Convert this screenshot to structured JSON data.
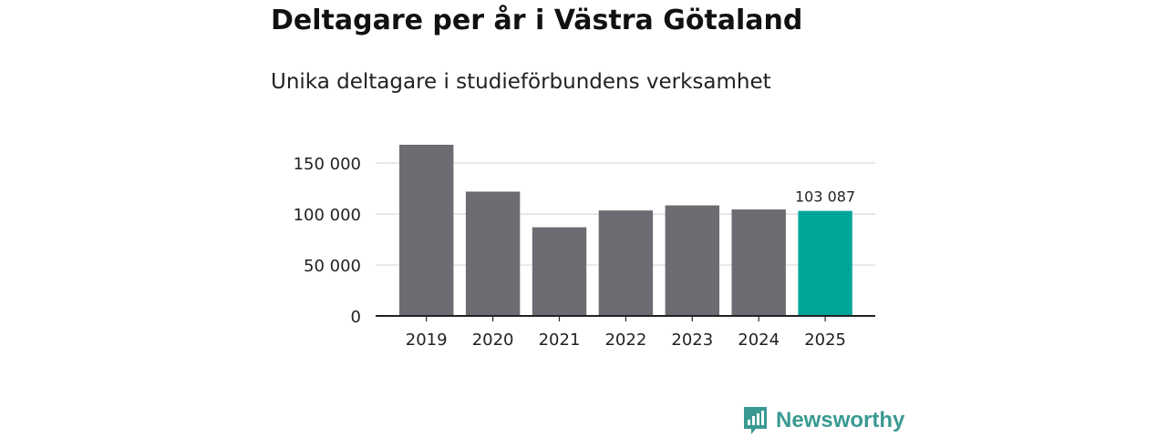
{
  "chart_data": {
    "type": "bar",
    "title": "Deltagare per år i Västra Götaland",
    "subtitle": "Unika deltagare i studieförbundens verksamhet",
    "categories": [
      "2019",
      "2020",
      "2021",
      "2022",
      "2023",
      "2024",
      "2025"
    ],
    "values": [
      168000,
      122000,
      87000,
      103500,
      108500,
      104500,
      103087
    ],
    "highlight_index": 6,
    "data_label": "103 087",
    "ylim": [
      0,
      168000
    ],
    "yticks": [
      0,
      50000,
      100000,
      150000
    ],
    "ytick_labels": [
      "0",
      "50 000",
      "100 000",
      "150 000"
    ],
    "xlabel": "",
    "ylabel": "",
    "grid": true,
    "colors": {
      "bar": "#6d6c72",
      "highlight": "#00a59a",
      "grid": "#d9d9d9",
      "axis": "#222222",
      "text": "#222222"
    }
  },
  "brand": {
    "name": "Newsworthy",
    "color": "#3a9a92"
  }
}
